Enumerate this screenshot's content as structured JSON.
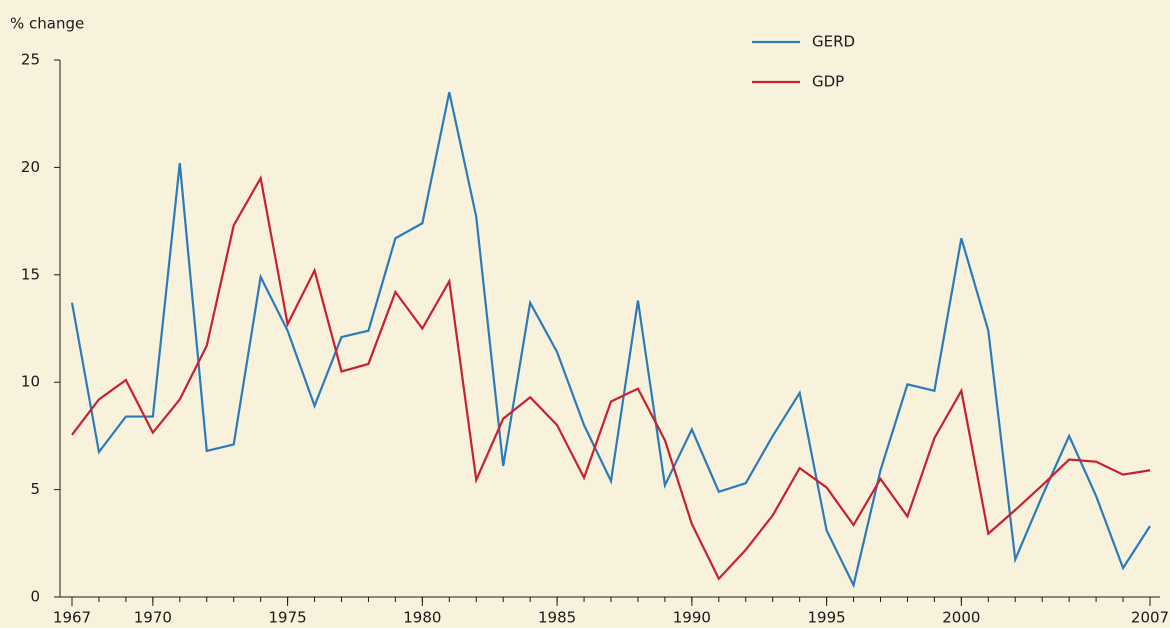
{
  "chart_data": {
    "type": "line",
    "y_label": "% change",
    "x": [
      1967,
      1968,
      1969,
      1970,
      1971,
      1972,
      1973,
      1974,
      1975,
      1976,
      1977,
      1978,
      1979,
      1980,
      1981,
      1982,
      1983,
      1984,
      1985,
      1986,
      1987,
      1988,
      1989,
      1990,
      1991,
      1992,
      1993,
      1994,
      1995,
      1996,
      1997,
      1998,
      1999,
      2000,
      2001,
      2002,
      2003,
      2004,
      2005,
      2006,
      2007
    ],
    "series": [
      {
        "name": "GERD",
        "color": "#2b7bba",
        "values": [
          13.7,
          6.75,
          8.4,
          8.4,
          20.2,
          6.8,
          7.1,
          14.9,
          12.4,
          8.9,
          12.1,
          12.4,
          16.7,
          17.4,
          23.5,
          17.7,
          6.1,
          13.7,
          11.4,
          8.0,
          5.4,
          13.8,
          5.2,
          7.8,
          4.9,
          5.3,
          7.5,
          9.5,
          3.1,
          0.55,
          5.9,
          9.9,
          9.6,
          16.7,
          12.4,
          1.75,
          4.7,
          7.5,
          4.7,
          1.35,
          3.3
        ]
      },
      {
        "name": "GDP",
        "color": "#c8202f",
        "values": [
          7.55,
          9.2,
          10.1,
          7.65,
          9.2,
          11.7,
          17.3,
          19.5,
          12.7,
          15.2,
          10.5,
          10.85,
          14.2,
          12.5,
          14.7,
          5.45,
          8.3,
          9.3,
          8.0,
          5.55,
          9.1,
          9.7,
          7.3,
          3.4,
          0.85,
          2.2,
          3.8,
          6.0,
          5.1,
          3.35,
          5.5,
          3.75,
          7.4,
          9.6,
          2.95,
          4.05,
          5.2,
          6.4,
          6.3,
          5.7,
          5.9
        ]
      }
    ],
    "xlim": [
      1967,
      2007
    ],
    "xticks": [
      1967,
      1970,
      1975,
      1980,
      1985,
      1990,
      1995,
      2000,
      2007
    ],
    "ylim": [
      0,
      25
    ],
    "yticks": [
      0,
      5,
      10,
      15,
      20,
      25
    ],
    "legend": "top-right"
  }
}
